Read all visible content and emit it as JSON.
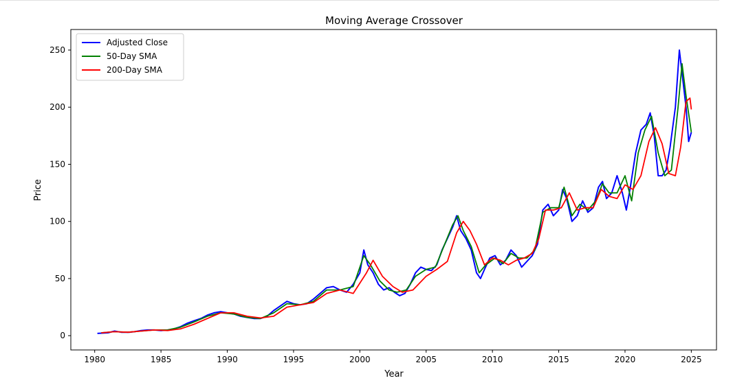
{
  "chart_data": {
    "type": "line",
    "title": "Moving Average Crossover",
    "xlabel": "Year",
    "ylabel": "Price",
    "xlim": [
      1978.2,
      2026.9
    ],
    "ylim": [
      -12.5,
      268
    ],
    "x_ticks": [
      1980,
      1985,
      1990,
      1995,
      2000,
      2005,
      2010,
      2015,
      2020,
      2025
    ],
    "y_ticks": [
      0,
      50,
      100,
      150,
      200,
      250
    ],
    "grid": false,
    "legend_position": "top-left",
    "series": [
      {
        "name": "Adjusted Close",
        "color": "#0000ff",
        "x": [
          1980.2,
          1981.0,
          1981.5,
          1982.0,
          1982.6,
          1983.0,
          1983.5,
          1984.0,
          1984.5,
          1985.0,
          1985.5,
          1986.0,
          1986.5,
          1987.0,
          1987.5,
          1988.0,
          1988.5,
          1989.0,
          1989.5,
          1990.0,
          1990.5,
          1991.0,
          1991.5,
          1992.0,
          1992.5,
          1993.0,
          1993.5,
          1994.0,
          1994.5,
          1995.0,
          1995.5,
          1996.0,
          1996.5,
          1997.0,
          1997.5,
          1998.0,
          1998.5,
          1999.0,
          1999.5,
          2000.0,
          2000.3,
          2000.6,
          2001.0,
          2001.4,
          2001.8,
          2002.2,
          2002.6,
          2003.0,
          2003.4,
          2003.8,
          2004.2,
          2004.6,
          2005.0,
          2005.4,
          2005.8,
          2006.2,
          2006.6,
          2007.0,
          2007.3,
          2007.6,
          2008.0,
          2008.4,
          2008.8,
          2009.1,
          2009.4,
          2009.8,
          2010.2,
          2010.6,
          2011.0,
          2011.4,
          2011.8,
          2012.2,
          2012.6,
          2013.0,
          2013.4,
          2013.8,
          2014.2,
          2014.6,
          2015.0,
          2015.3,
          2015.6,
          2016.0,
          2016.4,
          2016.8,
          2017.2,
          2017.6,
          2018.0,
          2018.3,
          2018.6,
          2019.0,
          2019.4,
          2019.8,
          2020.1,
          2020.4,
          2020.8,
          2021.2,
          2021.6,
          2021.9,
          2022.2,
          2022.5,
          2022.8,
          2023.1,
          2023.4,
          2023.8,
          2024.1,
          2024.3,
          2024.6,
          2024.8,
          2025.0
        ],
        "values": [
          2,
          2.5,
          4,
          3,
          3,
          3.5,
          4.5,
          5,
          5,
          4.5,
          5,
          6,
          8,
          11,
          13,
          15,
          18,
          20,
          21,
          20,
          19,
          17,
          16,
          15,
          15,
          17,
          22,
          26,
          30,
          28,
          27,
          28,
          32,
          37,
          42,
          43,
          40,
          38,
          45,
          55,
          75,
          62,
          55,
          45,
          40,
          42,
          38,
          35,
          37,
          45,
          55,
          60,
          58,
          57,
          62,
          75,
          85,
          95,
          105,
          92,
          85,
          75,
          55,
          50,
          58,
          68,
          70,
          62,
          66,
          75,
          70,
          60,
          65,
          70,
          80,
          110,
          115,
          105,
          110,
          128,
          120,
          100,
          105,
          118,
          108,
          112,
          130,
          135,
          120,
          125,
          140,
          125,
          110,
          130,
          160,
          180,
          185,
          195,
          175,
          140,
          140,
          145,
          165,
          200,
          250,
          230,
          200,
          170,
          178
        ]
      },
      {
        "name": "50-Day SMA",
        "color": "#008000",
        "x": [
          1980.5,
          1981.5,
          1982.5,
          1983.5,
          1984.5,
          1985.5,
          1986.5,
          1987.5,
          1988.5,
          1989.5,
          1990.5,
          1991.5,
          1992.5,
          1993.5,
          1994.5,
          1995.5,
          1996.5,
          1997.5,
          1998.5,
          1999.5,
          2000.3,
          2000.8,
          2001.5,
          2002.2,
          2002.8,
          2003.5,
          2004.2,
          2005.0,
          2005.7,
          2006.4,
          2007.0,
          2007.4,
          2007.8,
          2008.4,
          2009.0,
          2009.5,
          2010.2,
          2010.8,
          2011.4,
          2012.0,
          2012.6,
          2013.2,
          2013.8,
          2014.4,
          2015.0,
          2015.4,
          2016.0,
          2016.6,
          2017.2,
          2017.8,
          2018.3,
          2018.8,
          2019.4,
          2020.0,
          2020.5,
          2021.0,
          2021.5,
          2022.0,
          2022.5,
          2023.0,
          2023.5,
          2024.0,
          2024.3,
          2024.6,
          2025.0
        ],
        "values": [
          2.5,
          3.5,
          3,
          4,
          5,
          5,
          7.5,
          12,
          17,
          20,
          19,
          16,
          15,
          20,
          28,
          27,
          30,
          40,
          40,
          43,
          70,
          62,
          48,
          40,
          38,
          40,
          52,
          58,
          60,
          80,
          97,
          105,
          92,
          78,
          55,
          62,
          68,
          63,
          72,
          68,
          68,
          75,
          108,
          112,
          112,
          130,
          105,
          115,
          110,
          118,
          133,
          125,
          125,
          140,
          118,
          160,
          180,
          192,
          160,
          140,
          145,
          200,
          238,
          210,
          178
        ]
      },
      {
        "name": "200-Day SMA",
        "color": "#ff0000",
        "x": [
          1980.5,
          1981.5,
          1982.5,
          1983.5,
          1984.5,
          1985.5,
          1986.5,
          1987.5,
          1988.5,
          1989.5,
          1990.5,
          1991.5,
          1992.5,
          1993.5,
          1994.5,
          1995.5,
          1996.5,
          1997.5,
          1998.5,
          1999.5,
          2000.5,
          2001.0,
          2001.7,
          2002.5,
          2003.2,
          2004.0,
          2005.0,
          2005.8,
          2006.6,
          2007.3,
          2007.8,
          2008.3,
          2008.8,
          2009.4,
          2010.0,
          2010.6,
          2011.2,
          2011.8,
          2012.4,
          2013.0,
          2013.5,
          2014.0,
          2014.6,
          2015.2,
          2015.8,
          2016.4,
          2017.0,
          2017.6,
          2018.2,
          2018.8,
          2019.4,
          2020.0,
          2020.6,
          2021.2,
          2021.8,
          2022.3,
          2022.8,
          2023.3,
          2023.8,
          2024.2,
          2024.6,
          2024.9,
          2025.0
        ],
        "values": [
          2.5,
          3.5,
          3,
          4,
          5,
          4.5,
          6,
          10,
          15,
          20,
          20,
          17,
          15.5,
          17,
          25,
          27,
          29,
          37,
          40,
          37,
          55,
          66,
          52,
          43,
          38,
          40,
          52,
          58,
          65,
          90,
          100,
          92,
          80,
          62,
          68,
          66,
          62,
          66,
          68,
          72,
          85,
          110,
          110,
          112,
          125,
          110,
          112,
          112,
          128,
          122,
          120,
          132,
          128,
          140,
          170,
          182,
          168,
          142,
          140,
          165,
          205,
          208,
          198
        ]
      }
    ]
  }
}
